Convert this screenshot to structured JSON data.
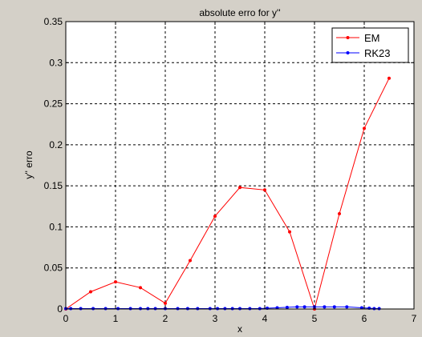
{
  "chart_data": {
    "type": "line",
    "title": "absolute erro for y''",
    "xlabel": "x",
    "ylabel": "y'' erro",
    "xlim": [
      0,
      7
    ],
    "ylim": [
      0,
      0.35
    ],
    "xticks": [
      0,
      1,
      2,
      3,
      4,
      5,
      6,
      7
    ],
    "xtick_labels": [
      "0",
      "1",
      "2",
      "3",
      "4",
      "5",
      "6",
      "7"
    ],
    "yticks": [
      0,
      0.05,
      0.1,
      0.15,
      0.2,
      0.25,
      0.3,
      0.35
    ],
    "ytick_labels": [
      "0",
      "0.05",
      "0.1",
      "0.15",
      "0.2",
      "0.25",
      "0.3",
      "0.35"
    ],
    "grid": true,
    "legend_position": "top-right",
    "series": [
      {
        "name": "EM",
        "color": "#ff0000",
        "marker": "dot",
        "x": [
          0,
          0.5,
          1,
          1.5,
          2,
          2.5,
          3,
          3.5,
          4,
          4.5,
          5,
          5.5,
          6,
          6.5
        ],
        "y": [
          0,
          0.021,
          0.033,
          0.026,
          0.007,
          0.059,
          0.113,
          0.148,
          0.145,
          0.094,
          0.0,
          0.116,
          0.22,
          0.281
        ]
      },
      {
        "name": "RK23",
        "color": "#0000ff",
        "marker": "dot",
        "x": [
          0,
          0.1,
          0.3,
          0.55,
          0.8,
          1.05,
          1.3,
          1.5,
          1.65,
          1.8,
          2.0,
          2.25,
          2.45,
          2.65,
          2.9,
          3.05,
          3.2,
          3.35,
          3.5,
          3.7,
          3.9,
          4.05,
          4.25,
          4.45,
          4.65,
          4.8,
          5.0,
          5.2,
          5.4,
          5.65,
          5.95,
          6.1,
          6.2,
          6.3
        ],
        "y": [
          0.0005,
          0.0005,
          0.0005,
          0.0005,
          0.0005,
          0.0005,
          0.0005,
          0.0005,
          0.0005,
          0.0005,
          0.0005,
          0.0005,
          0.0005,
          0.0005,
          0.0005,
          0.0005,
          0.0005,
          0.0005,
          0.0005,
          0.0005,
          0.0005,
          0.001,
          0.0015,
          0.002,
          0.0025,
          0.0025,
          0.0025,
          0.0025,
          0.0025,
          0.0025,
          0.0015,
          0.001,
          0.0005,
          0.0005
        ]
      }
    ]
  }
}
